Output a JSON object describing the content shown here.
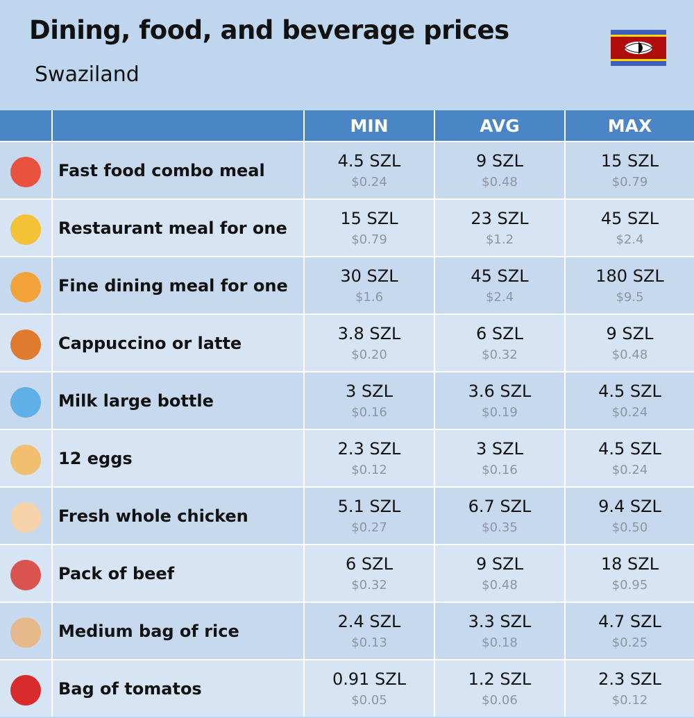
{
  "header": {
    "title": "Dining, food, and beverage prices",
    "subtitle": "Swaziland"
  },
  "table": {
    "columns": [
      "MIN",
      "AVG",
      "MAX"
    ],
    "rows": [
      {
        "name": "Fast food combo meal",
        "cells": [
          {
            "local": "4.5 SZL",
            "usd": "$0.24"
          },
          {
            "local": "9 SZL",
            "usd": "$0.48"
          },
          {
            "local": "15 SZL",
            "usd": "$0.79"
          }
        ]
      },
      {
        "name": "Restaurant meal for one",
        "cells": [
          {
            "local": "15 SZL",
            "usd": "$0.79"
          },
          {
            "local": "23 SZL",
            "usd": "$1.2"
          },
          {
            "local": "45 SZL",
            "usd": "$2.4"
          }
        ]
      },
      {
        "name": "Fine dining meal for one",
        "cells": [
          {
            "local": "30 SZL",
            "usd": "$1.6"
          },
          {
            "local": "45 SZL",
            "usd": "$2.4"
          },
          {
            "local": "180 SZL",
            "usd": "$9.5"
          }
        ]
      },
      {
        "name": "Cappuccino or latte",
        "cells": [
          {
            "local": "3.8 SZL",
            "usd": "$0.20"
          },
          {
            "local": "6 SZL",
            "usd": "$0.32"
          },
          {
            "local": "9 SZL",
            "usd": "$0.48"
          }
        ]
      },
      {
        "name": "Milk large bottle",
        "cells": [
          {
            "local": "3 SZL",
            "usd": "$0.16"
          },
          {
            "local": "3.6 SZL",
            "usd": "$0.19"
          },
          {
            "local": "4.5 SZL",
            "usd": "$0.24"
          }
        ]
      },
      {
        "name": "12 eggs",
        "cells": [
          {
            "local": "2.3 SZL",
            "usd": "$0.12"
          },
          {
            "local": "3 SZL",
            "usd": "$0.16"
          },
          {
            "local": "4.5 SZL",
            "usd": "$0.24"
          }
        ]
      },
      {
        "name": "Fresh whole chicken",
        "cells": [
          {
            "local": "5.1 SZL",
            "usd": "$0.27"
          },
          {
            "local": "6.7 SZL",
            "usd": "$0.35"
          },
          {
            "local": "9.4 SZL",
            "usd": "$0.50"
          }
        ]
      },
      {
        "name": "Pack of beef",
        "cells": [
          {
            "local": "6 SZL",
            "usd": "$0.32"
          },
          {
            "local": "9 SZL",
            "usd": "$0.48"
          },
          {
            "local": "18 SZL",
            "usd": "$0.95"
          }
        ]
      },
      {
        "name": "Medium bag of rice",
        "cells": [
          {
            "local": "2.4 SZL",
            "usd": "$0.13"
          },
          {
            "local": "3.3 SZL",
            "usd": "$0.18"
          },
          {
            "local": "4.7 SZL",
            "usd": "$0.25"
          }
        ]
      },
      {
        "name": "Bag of tomatos",
        "cells": [
          {
            "local": "0.91 SZL",
            "usd": "$0.05"
          },
          {
            "local": "1.2 SZL",
            "usd": "$0.06"
          },
          {
            "local": "2.3 SZL",
            "usd": "$0.12"
          }
        ]
      }
    ]
  }
}
